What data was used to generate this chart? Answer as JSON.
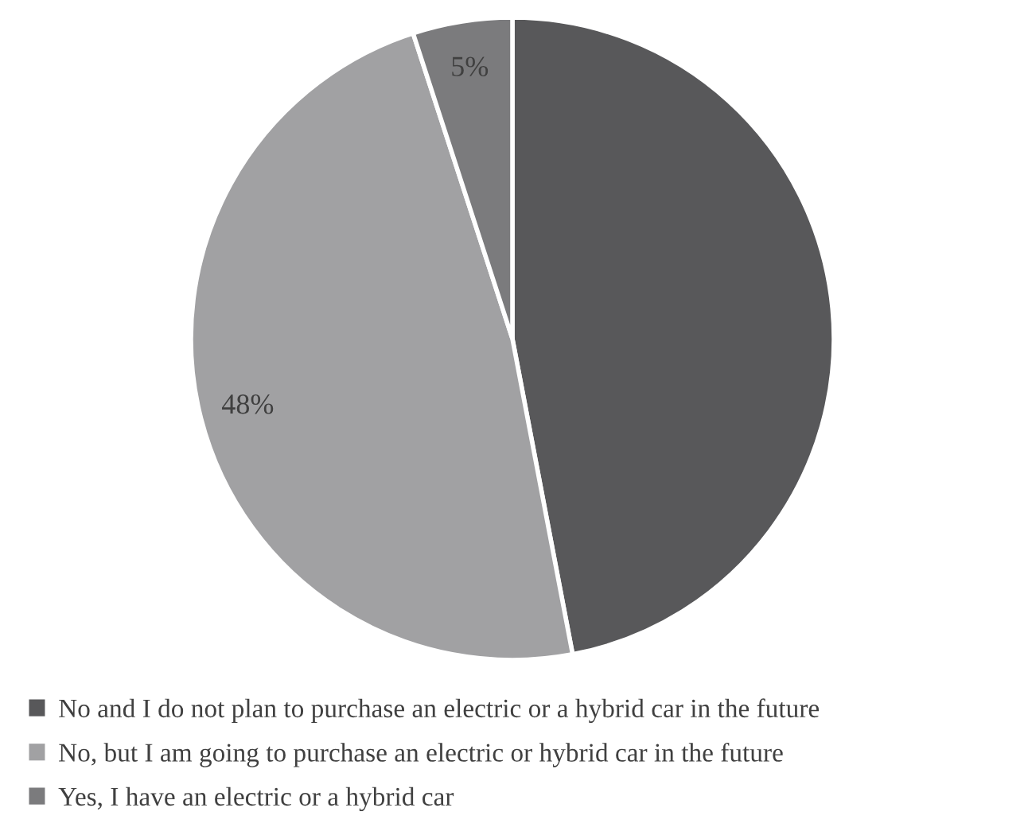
{
  "chart_data": {
    "type": "pie",
    "categories": [
      "No and I do not plan to purchase an electric or a hybrid car in the future",
      "No, but I am going to purchase an electric or hybrid car in the future",
      "Yes, I have an electric or a hybrid car"
    ],
    "values": [
      47,
      48,
      5
    ],
    "colors": [
      "#58585a",
      "#a1a1a3",
      "#7b7b7d"
    ],
    "value_labels": [
      null,
      "48%",
      "5%"
    ],
    "legend": "bottom"
  }
}
